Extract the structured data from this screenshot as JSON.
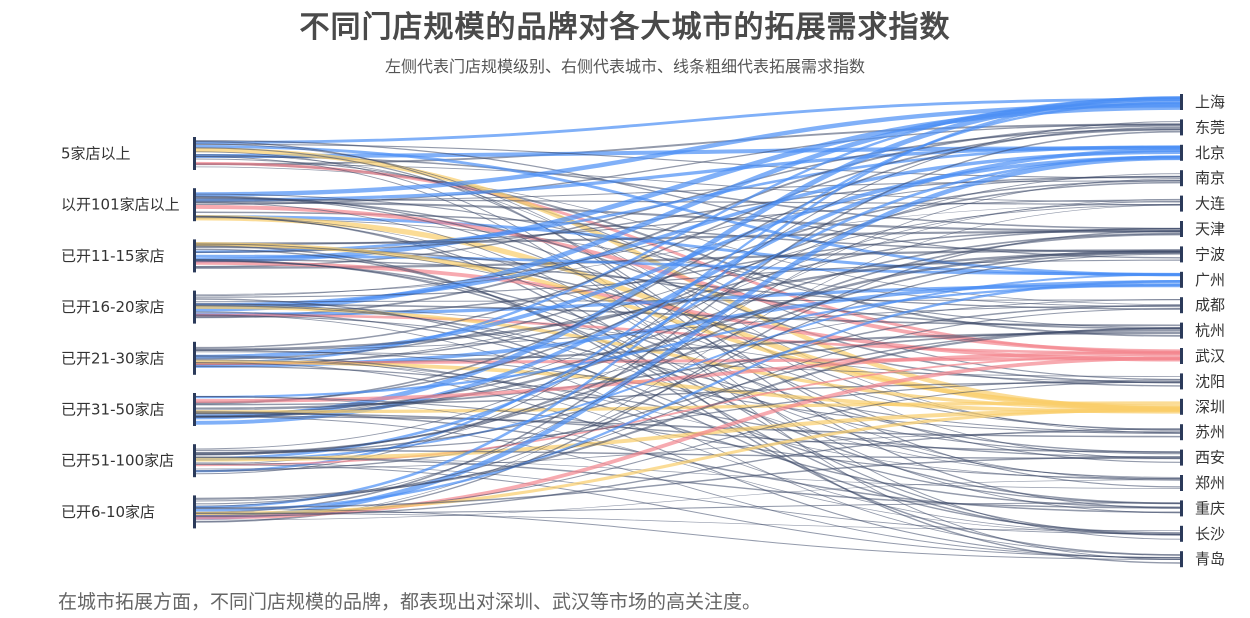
{
  "header": {
    "title": "不同门店规模的品牌对各大城市的拓展需求指数",
    "subtitle": "左侧代表门店规模级别、右侧代表城市、线条粗细代表拓展需求指数"
  },
  "footer": {
    "note": "在城市拓展方面，不同门店规模的品牌，都表现出对深圳、武汉等市场的高关注度。"
  },
  "colors": {
    "node": "#2b3a5a",
    "blue": "#4a8ef5",
    "dark": "#3a4766",
    "pink": "#f4868e",
    "yellow": "#f9cd6a",
    "text": "#333333"
  },
  "chart_data": {
    "type": "sankey",
    "left_nodes": [
      "5家店以上",
      "以开101家店以上",
      "已开11-15家店",
      "已开16-20家店",
      "已开21-30家店",
      "已开31-50家店",
      "已开51-100家店",
      "已开6-10家店"
    ],
    "right_nodes": [
      "上海",
      "东莞",
      "北京",
      "南京",
      "大连",
      "天津",
      "宁波",
      "广州",
      "成都",
      "杭州",
      "武汉",
      "沈阳",
      "深圳",
      "苏州",
      "西安",
      "郑州",
      "重庆",
      "长沙",
      "青岛"
    ],
    "city_colors": {
      "上海": "blue",
      "东莞": "dark",
      "北京": "blue",
      "南京": "dark",
      "大连": "dark",
      "天津": "dark",
      "宁波": "dark",
      "广州": "blue",
      "成都": "dark",
      "杭州": "dark",
      "武汉": "pink",
      "沈阳": "dark",
      "深圳": "yellow",
      "苏州": "dark",
      "西安": "dark",
      "郑州": "dark",
      "重庆": "dark",
      "长沙": "dark",
      "青岛": "dark"
    },
    "city_weights": {
      "上海": 3.2,
      "东莞": 1.2,
      "北京": 3.6,
      "南京": 1.0,
      "大连": 0.8,
      "天津": 1.4,
      "宁波": 1.6,
      "广州": 2.4,
      "成都": 1.0,
      "杭州": 1.4,
      "武汉": 2.6,
      "沈阳": 1.0,
      "深圳": 3.4,
      "苏州": 1.0,
      "西安": 1.0,
      "郑州": 0.8,
      "重庆": 1.0,
      "长沙": 0.9,
      "青岛": 1.0
    },
    "title": "不同门店规模的品牌对各大城市的拓展需求指数",
    "subtitle": "左侧代表门店规模级别、右侧代表城市、线条粗细代表拓展需求指数"
  }
}
